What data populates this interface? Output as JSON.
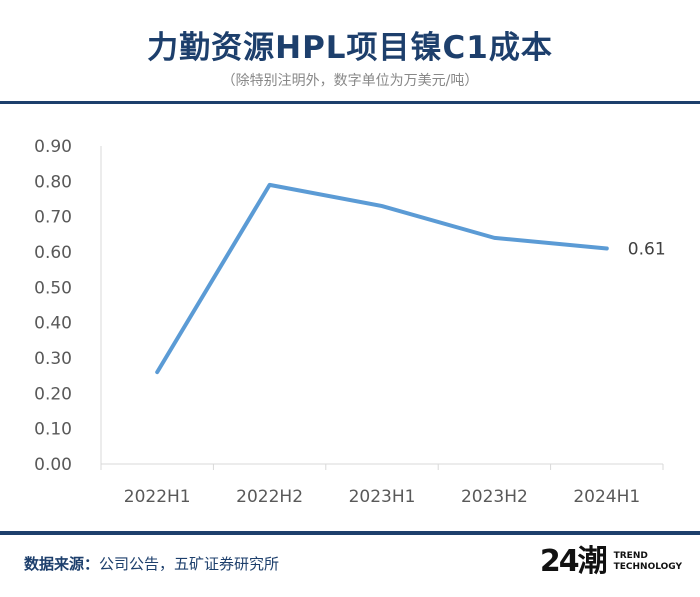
{
  "header": {
    "title": "力勤资源HPL项目镍C1成本",
    "subtitle": "（除特别注明外，数字单位为万美元/吨）"
  },
  "chart_data": {
    "type": "line",
    "categories": [
      "2022H1",
      "2022H2",
      "2023H1",
      "2023H2",
      "2024H1"
    ],
    "series": [
      {
        "values": [
          0.26,
          0.79,
          0.73,
          0.64,
          0.61
        ]
      }
    ],
    "yticks": [
      "0.00",
      "0.10",
      "0.20",
      "0.30",
      "0.40",
      "0.50",
      "0.60",
      "0.70",
      "0.80",
      "0.90"
    ],
    "ylim": [
      0,
      0.9
    ],
    "end_label": "0.61",
    "line_color": "#5b9bd5",
    "grid": false
  },
  "footer": {
    "source_label": "数据来源：",
    "source_text": "公司公告，五矿证券研究所",
    "brand_mark": "24潮",
    "brand_line1": "TREND",
    "brand_line2": "TECHNOLOGY"
  },
  "colors": {
    "title": "#1d3f6c",
    "rule": "#1d3f6c",
    "axis": "#d9d9d9",
    "tick_text": "#595959"
  }
}
